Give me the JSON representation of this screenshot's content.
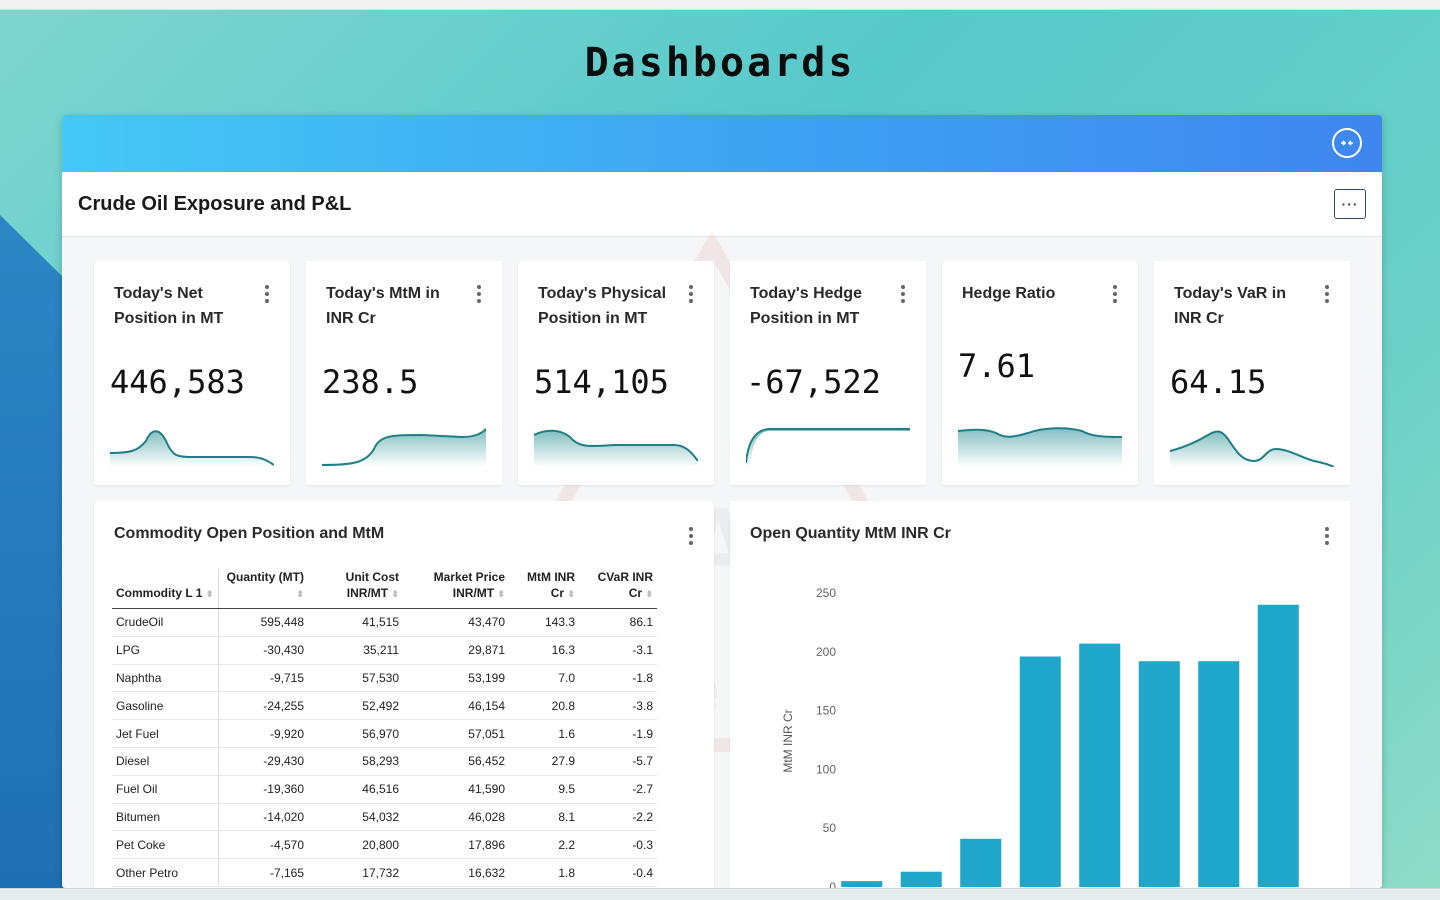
{
  "page": {
    "title": "Dashboards"
  },
  "dashboard": {
    "title": "Crude Oil Exposure and P&L",
    "more_label": "···"
  },
  "watermark": {
    "line1": "TRANSRISK",
    "line2": "Exposure – P&L – VaR"
  },
  "kpis": [
    {
      "title": "Today's Net Position in MT",
      "value": "446,583"
    },
    {
      "title": "Today's MtM in INR Cr",
      "value": "238.5"
    },
    {
      "title": "Today's Physical Position in MT",
      "value": "514,105"
    },
    {
      "title": "Today's Hedge Position in MT",
      "value": "-67,522"
    },
    {
      "title": "Hedge Ratio",
      "value": "7.61"
    },
    {
      "title": "Today's VaR in INR Cr",
      "value": "64.15"
    }
  ],
  "table_card": {
    "title": "Commodity Open Position and MtM",
    "columns": [
      "Commodity L 1",
      "Quantity (MT)",
      "Unit Cost INR/MT",
      "Market Price INR/MT",
      "MtM INR Cr",
      "CVaR INR Cr"
    ],
    "rows": [
      [
        "CrudeOil",
        "595,448",
        "41,515",
        "43,470",
        "143.3",
        "86.1"
      ],
      [
        "LPG",
        "-30,430",
        "35,211",
        "29,871",
        "16.3",
        "-3.1"
      ],
      [
        "Naphtha",
        "-9,715",
        "57,530",
        "53,199",
        "7.0",
        "-1.8"
      ],
      [
        "Gasoline",
        "-24,255",
        "52,492",
        "46,154",
        "20.8",
        "-3.8"
      ],
      [
        "Jet Fuel",
        "-9,920",
        "56,970",
        "57,051",
        "1.6",
        "-1.9"
      ],
      [
        "Diesel",
        "-29,430",
        "58,293",
        "56,452",
        "27.9",
        "-5.7"
      ],
      [
        "Fuel Oil",
        "-19,360",
        "46,516",
        "41,590",
        "9.5",
        "-2.7"
      ],
      [
        "Bitumen",
        "-14,020",
        "54,032",
        "46,028",
        "8.1",
        "-2.2"
      ],
      [
        "Pet Coke",
        "-4,570",
        "20,800",
        "17,896",
        "2.2",
        "-0.3"
      ],
      [
        "Other Petro",
        "-7,165",
        "17,732",
        "16,632",
        "1.8",
        "-0.4"
      ]
    ]
  },
  "chart_card": {
    "title": "Open Quantity MtM INR Cr"
  },
  "chart_data": {
    "type": "bar",
    "title": "Open Quantity MtM INR Cr",
    "ylabel": "MtM INR Cr",
    "ylim": [
      0,
      260
    ],
    "yticks": [
      0,
      50,
      100,
      150,
      200,
      250
    ],
    "values": [
      5,
      13,
      41,
      196,
      207,
      192,
      192,
      240
    ],
    "color": "#1fa7c9",
    "grid": false
  },
  "colors": {
    "accent": "#3ea5f2",
    "spark": "#1f8a8f"
  }
}
